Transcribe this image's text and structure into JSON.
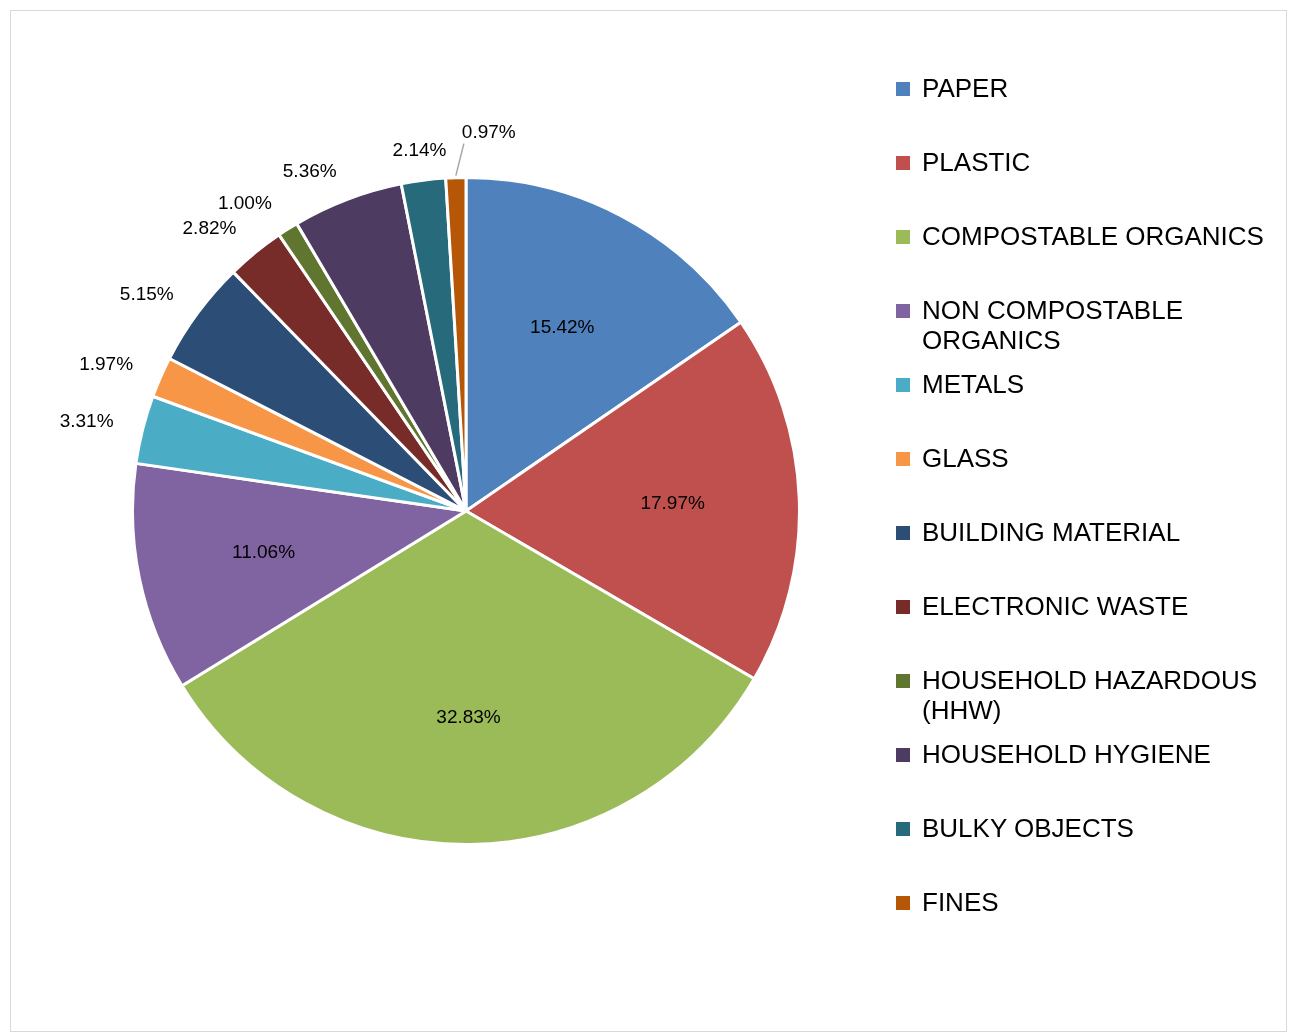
{
  "chart_data": {
    "type": "pie",
    "categories": [
      "PAPER",
      "PLASTIC",
      "COMPOSTABLE ORGANICS",
      "NON COMPOSTABLE ORGANICS",
      "METALS",
      "GLASS",
      "BUILDING MATERIAL",
      "ELECTRONIC WASTE",
      "HOUSEHOLD HAZARDOUS (HHW)",
      "HOUSEHOLD HYGIENE",
      "BULKY OBJECTS",
      "FINES"
    ],
    "values": [
      15.42,
      17.97,
      32.83,
      11.06,
      3.31,
      1.97,
      5.15,
      2.82,
      1.0,
      5.36,
      2.14,
      0.97
    ],
    "value_labels": [
      "15.42%",
      "17.97%",
      "32.83%",
      "11.06%",
      "3.31%",
      "1.97%",
      "5.15%",
      "2.82%",
      "1.00%",
      "5.36%",
      "2.14%",
      "0.97%"
    ],
    "colors": [
      "#4f81bd",
      "#c0504d",
      "#9bbb59",
      "#8064a2",
      "#4bacc6",
      "#f79646",
      "#2c4d75",
      "#772c2a",
      "#5f7530",
      "#4d3b62",
      "#276a7c",
      "#b65708"
    ],
    "legend": "right"
  }
}
